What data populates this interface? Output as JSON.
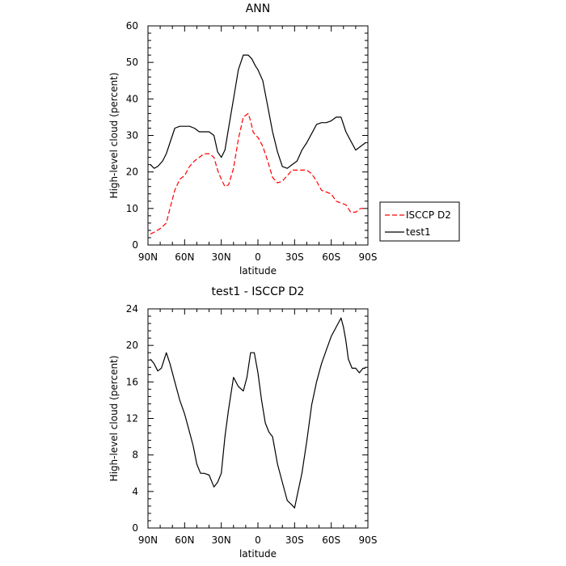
{
  "chart_data": [
    {
      "type": "line",
      "title": "ANN",
      "xlabel": "latitude",
      "ylabel": "High-level cloud (percent)",
      "xlim": [
        -90,
        90
      ],
      "ylim": [
        0,
        60
      ],
      "x_ticks": [
        -90,
        -60,
        -30,
        0,
        30,
        60,
        90
      ],
      "x_tick_labels": [
        "90N",
        "60N",
        "30N",
        "0",
        "30S",
        "60S",
        "90S"
      ],
      "y_ticks": [
        0,
        10,
        20,
        30,
        40,
        50,
        60
      ],
      "y_tick_labels": [
        "0",
        "10",
        "20",
        "30",
        "40",
        "50",
        "60"
      ],
      "legend_placement": "outside-right",
      "series": [
        {
          "name": "ISCCP D2",
          "color": "#ff0000",
          "dash": "dashed",
          "x": [
            -88,
            -85,
            -80,
            -75,
            -72,
            -68,
            -64,
            -60,
            -56,
            -52,
            -48,
            -44,
            -40,
            -36,
            -33,
            -30,
            -27,
            -24,
            -20,
            -16,
            -12,
            -8,
            -6,
            -4,
            -2,
            0,
            4,
            8,
            12,
            16,
            20,
            24,
            28,
            32,
            36,
            40,
            44,
            48,
            52,
            56,
            60,
            64,
            68,
            72,
            76,
            80,
            84,
            88
          ],
          "y": [
            3,
            3.5,
            4.5,
            6,
            10,
            15,
            18,
            19,
            21.5,
            23,
            24,
            25,
            25,
            24,
            20.5,
            18,
            16,
            16.5,
            21,
            29,
            35,
            36,
            34,
            31,
            30,
            29.5,
            27,
            23,
            18.5,
            17,
            17.5,
            19,
            20.5,
            20.5,
            20.5,
            20.5,
            19.5,
            17.5,
            15,
            14.5,
            14,
            12,
            11.5,
            11,
            9,
            9,
            10,
            10
          ]
        },
        {
          "name": "test1",
          "color": "#000000",
          "dash": "solid",
          "x": [
            -88,
            -85,
            -82,
            -78,
            -75,
            -72,
            -68,
            -64,
            -60,
            -56,
            -52,
            -48,
            -44,
            -40,
            -36,
            -33,
            -30,
            -27,
            -24,
            -20,
            -16,
            -12,
            -8,
            -5,
            -2,
            0,
            4,
            8,
            12,
            16,
            20,
            24,
            28,
            32,
            36,
            40,
            44,
            48,
            52,
            56,
            60,
            64,
            68,
            72,
            76,
            80,
            84,
            88
          ],
          "y": [
            22,
            21,
            21.5,
            23,
            25,
            28,
            32,
            32.5,
            32.5,
            32.5,
            32,
            31,
            31,
            31,
            30,
            25.5,
            24,
            26,
            32,
            40,
            48,
            52,
            52,
            51,
            49,
            48,
            45,
            38,
            31,
            25.5,
            21.5,
            21,
            22,
            23,
            26,
            28,
            30.5,
            33,
            33.5,
            33.5,
            34,
            35,
            35,
            31,
            28.5,
            26,
            27,
            28
          ]
        }
      ]
    },
    {
      "type": "line",
      "title": "test1 - ISCCP D2",
      "xlabel": "latitude",
      "ylabel": "High-level cloud (percent)",
      "xlim": [
        -90,
        90
      ],
      "ylim": [
        0,
        24
      ],
      "x_ticks": [
        -90,
        -60,
        -30,
        0,
        30,
        60,
        90
      ],
      "x_tick_labels": [
        "90N",
        "60N",
        "30N",
        "0",
        "30S",
        "60S",
        "90S"
      ],
      "y_ticks": [
        0,
        4,
        8,
        12,
        16,
        20,
        24
      ],
      "y_tick_labels": [
        "0",
        "4",
        "8",
        "12",
        "16",
        "20",
        "24"
      ],
      "series": [
        {
          "name": "",
          "color": "#000000",
          "dash": "solid",
          "x": [
            -88,
            -85,
            -82,
            -79,
            -75,
            -72,
            -68,
            -64,
            -60,
            -57,
            -53,
            -50,
            -47,
            -44,
            -40,
            -36,
            -33,
            -30,
            -27,
            -24,
            -20,
            -16,
            -12,
            -9,
            -6,
            -3,
            0,
            3,
            6,
            9,
            12,
            16,
            20,
            24,
            28,
            30,
            32,
            36,
            40,
            44,
            48,
            52,
            56,
            60,
            64,
            68,
            70,
            72,
            74,
            77,
            80,
            83,
            86,
            88
          ],
          "y": [
            18.5,
            18,
            17.2,
            17.5,
            19.2,
            18,
            16,
            14,
            12.5,
            11,
            9,
            7,
            6,
            6,
            5.8,
            4.5,
            5,
            6,
            10,
            13,
            16.5,
            15.5,
            15,
            16.5,
            19.2,
            19.2,
            17,
            14,
            11.5,
            10.5,
            10,
            7,
            5,
            3,
            2.5,
            2.2,
            3.5,
            6,
            9.5,
            13.5,
            16,
            18,
            19.5,
            21,
            22,
            23,
            22,
            20.5,
            18.5,
            17.5,
            17.5,
            17,
            17.5,
            17.5
          ]
        }
      ]
    }
  ]
}
